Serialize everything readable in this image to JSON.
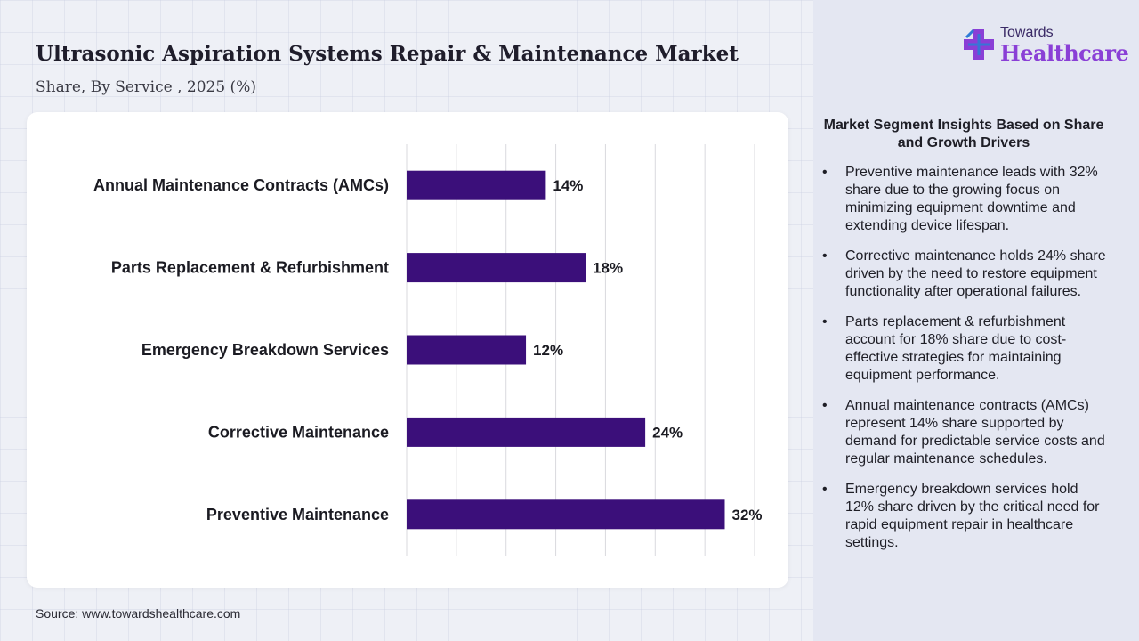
{
  "header": {
    "title": "Ultrasonic Aspiration Systems Repair & Maintenance Market",
    "subtitle": "Share, By Service , 2025 (%)"
  },
  "logo": {
    "top_text": "Towards",
    "bottom_text": "Healthcare"
  },
  "source": "Source: www.towardshealthcare.com",
  "insights": {
    "title": "Market Segment Insights Based on Share and Growth Drivers",
    "bullet_symbol": "•",
    "items": [
      "Preventive maintenance leads with 32% share due to the growing focus on minimizing equipment downtime and extending device lifespan.",
      "Corrective maintenance holds 24% share driven by the need to restore equipment functionality after operational failures.",
      "Parts replacement & refurbishment account for 18% share due to cost-effective strategies for maintaining equipment performance.",
      "Annual maintenance contracts (AMCs) represent 14% share supported by demand for predictable service costs and regular maintenance schedules.",
      "Emergency breakdown services hold 12% share driven by the critical need for rapid equipment repair in healthcare settings."
    ]
  },
  "colors": {
    "bar": "#3b0f7a",
    "grid": "#d9d9de",
    "label_text": "#1b1b22",
    "logo_purple": "#8a3fd6",
    "logo_blue": "#2e7bd6"
  },
  "chart_data": {
    "type": "bar",
    "orientation": "horizontal",
    "categories": [
      "Annual Maintenance Contracts (AMCs)",
      "Parts Replacement & Refurbishment",
      "Emergency Breakdown Services",
      "Corrective Maintenance",
      "Preventive Maintenance"
    ],
    "values": [
      14,
      18,
      12,
      24,
      32
    ],
    "value_labels": [
      "14%",
      "18%",
      "12%",
      "24%",
      "32%"
    ],
    "xlim": [
      0,
      35
    ],
    "xticks": [
      0,
      5,
      10,
      15,
      20,
      25,
      30,
      35
    ],
    "grid": true,
    "show_x_tick_labels": false,
    "legend": "none"
  }
}
